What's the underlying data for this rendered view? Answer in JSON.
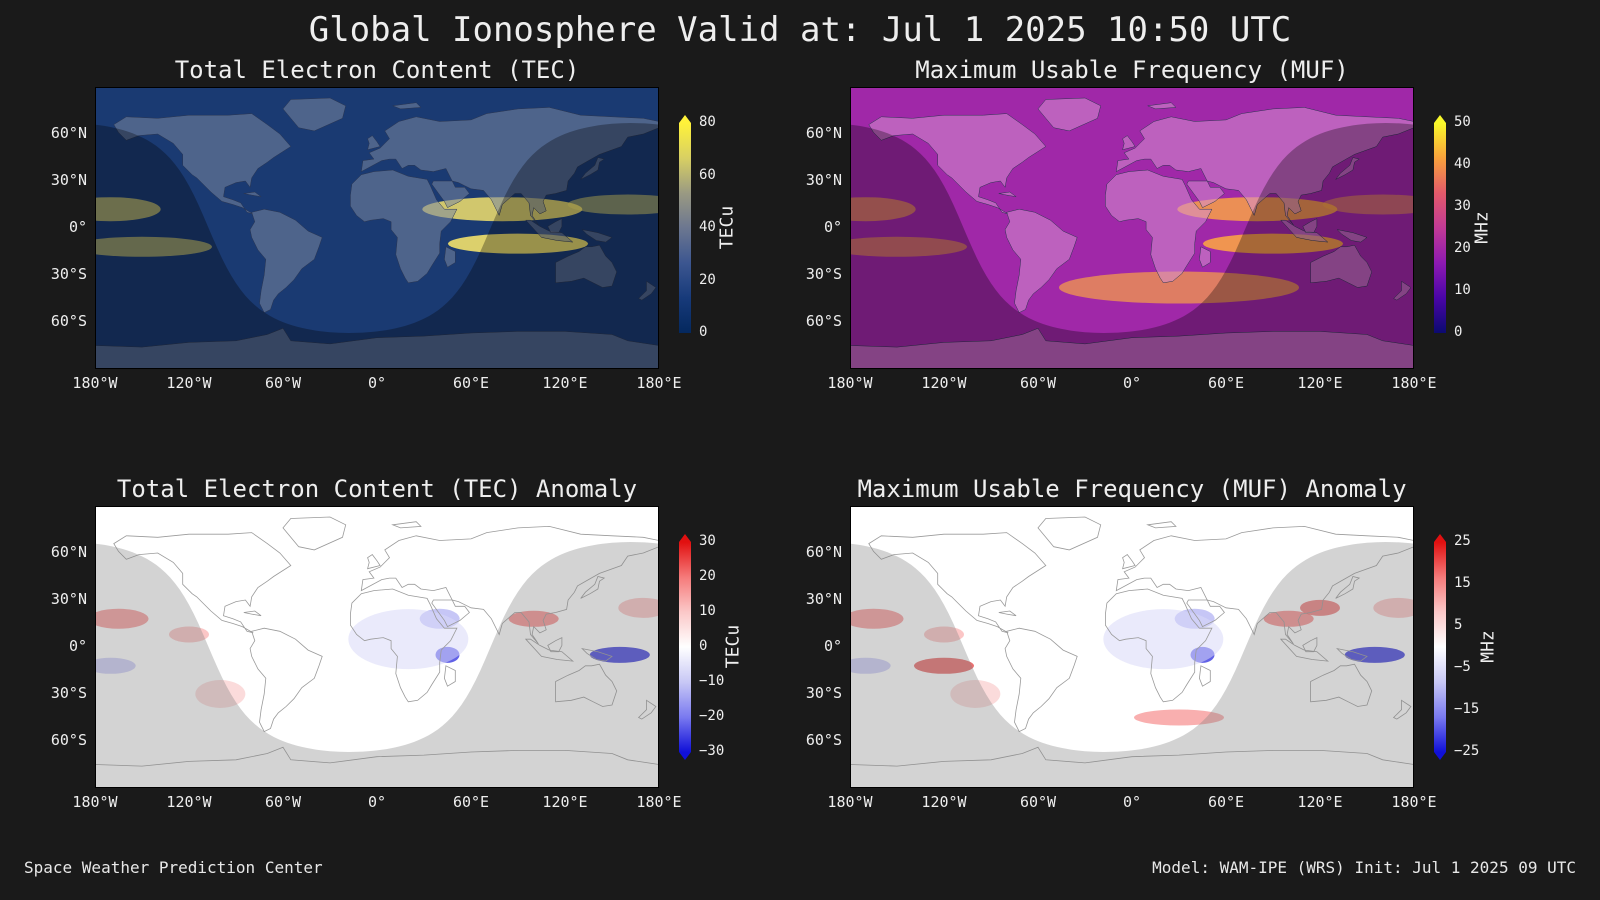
{
  "title": "Global Ionosphere Valid at: Jul 1 2025 10:50 UTC",
  "footer": {
    "left": "Space Weather Prediction Center",
    "right": "Model: WAM-IPE (WRS) Init: Jul 1 2025 09 UTC"
  },
  "lat_labels": [
    "60°N",
    "30°N",
    "0°",
    "30°S",
    "60°S"
  ],
  "lon_labels": [
    "180°W",
    "120°W",
    "60°W",
    "0°",
    "60°E",
    "120°E",
    "180°E"
  ],
  "panels": [
    {
      "id": "tec",
      "title": "Total Electron Content (TEC)",
      "colorbar": {
        "label": "TECu",
        "ticks": [
          "80",
          "60",
          "40",
          "20",
          "0"
        ],
        "colors": [
          "#fff23a",
          "#d8d063",
          "#9a9a82",
          "#6c7790",
          "#3c5690",
          "#173a7a",
          "#04285e"
        ]
      },
      "colors": {
        "ocean": "#1a3a72",
        "land": "#7a86a0",
        "band": "#f2e16c"
      }
    },
    {
      "id": "muf",
      "title": "Maximum Usable Frequency (MUF)",
      "colorbar": {
        "label": "MHz",
        "ticks": [
          "50",
          "40",
          "30",
          "20",
          "10",
          "0"
        ],
        "colors": [
          "#f8f82a",
          "#f8a13c",
          "#e35a6a",
          "#c23a96",
          "#8e1ab2",
          "#4a05a8",
          "#0b0a70"
        ]
      },
      "colors": {
        "ocean": "#a028a8",
        "land": "#d58fcf",
        "band": "#f8a146"
      }
    },
    {
      "id": "tec-anom",
      "title": "Total Electron Content (TEC) Anomaly",
      "colorbar": {
        "label": "TECu",
        "ticks": [
          "30",
          "20",
          "10",
          "0",
          "−10",
          "−20",
          "−30"
        ],
        "colors": [
          "#e11010",
          "#f57a7a",
          "#fbc8c8",
          "#ffffff",
          "#c8c8f5",
          "#7a7af0",
          "#1010d8"
        ]
      },
      "colors": {
        "ocean": "#ffffff",
        "land": "#f3f3f3",
        "night": "#bdbdbd"
      }
    },
    {
      "id": "muf-anom",
      "title": "Maximum Usable Frequency (MUF) Anomaly",
      "colorbar": {
        "label": "MHz",
        "ticks": [
          "25",
          "15",
          "5",
          "−5",
          "−15",
          "−25"
        ],
        "colors": [
          "#e11010",
          "#f57a7a",
          "#fbc8c8",
          "#ffffff",
          "#c8c8f5",
          "#7a7af0",
          "#1010d8"
        ]
      },
      "colors": {
        "ocean": "#ffffff",
        "land": "#f3f3f3",
        "night": "#bdbdbd"
      }
    }
  ]
}
